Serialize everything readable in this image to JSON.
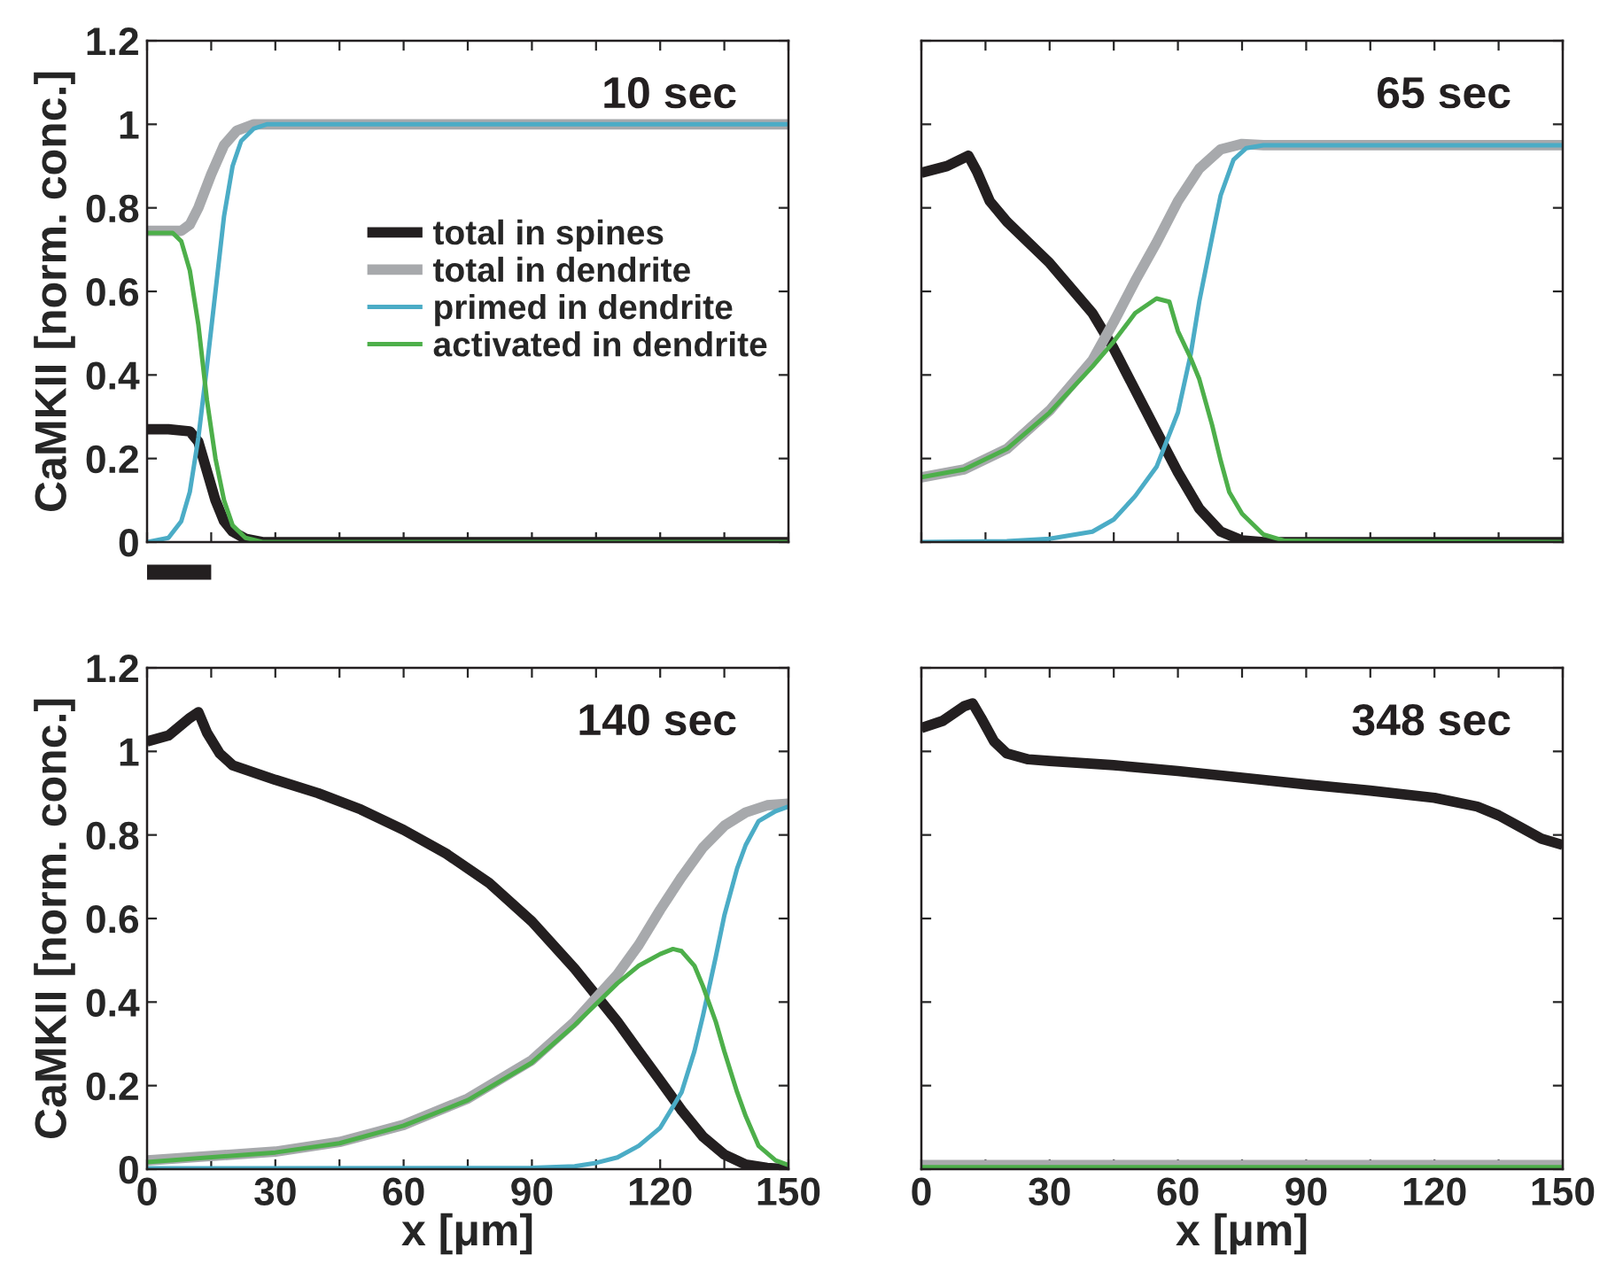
{
  "chart_data": [
    {
      "type": "line",
      "title": "10 sec",
      "ylabel": "CaMKII [norm. conc.]",
      "xlim": [
        0,
        150
      ],
      "ylim": [
        0,
        1.2
      ],
      "xticks": [
        0,
        {
          "value": 15,
          "label": null
        },
        30,
        {
          "value": 45,
          "label": null
        },
        60,
        {
          "value": 75,
          "label": null
        },
        90,
        {
          "value": 105,
          "label": null
        },
        120,
        {
          "value": 135,
          "label": null
        },
        150
      ],
      "yticks": [
        0,
        0.2,
        0.4,
        0.6,
        0.8,
        1,
        1.2
      ],
      "tick_labels": "y",
      "legend": "right",
      "grid": false,
      "series": [
        {
          "name": "total in spines",
          "color": "#231f20",
          "x": [
            0,
            5,
            10,
            12,
            14,
            16,
            18,
            20,
            23,
            27,
            150
          ],
          "values": [
            0.27,
            0.27,
            0.265,
            0.24,
            0.17,
            0.1,
            0.05,
            0.025,
            0.008,
            0,
            0
          ]
        },
        {
          "name": "total in dendrite",
          "color": "#a7a9ac",
          "x": [
            0,
            8,
            10,
            12,
            15,
            18,
            21,
            25,
            150
          ],
          "values": [
            0.745,
            0.745,
            0.76,
            0.8,
            0.88,
            0.95,
            0.985,
            1.0,
            1.0
          ]
        },
        {
          "name": "primed in dendrite",
          "color": "#4bacc6",
          "x": [
            0,
            5,
            8,
            10,
            12,
            14,
            16,
            18,
            20,
            22,
            25,
            28,
            150
          ],
          "values": [
            0,
            0.01,
            0.05,
            0.12,
            0.25,
            0.42,
            0.6,
            0.78,
            0.9,
            0.96,
            0.99,
            1.0,
            1.0
          ]
        },
        {
          "name": "activated in dendrite",
          "color": "#4daf4a",
          "x": [
            0,
            6,
            8,
            10,
            12,
            14,
            16,
            18,
            20,
            23,
            27,
            150
          ],
          "values": [
            0.74,
            0.74,
            0.72,
            0.65,
            0.52,
            0.34,
            0.2,
            0.1,
            0.04,
            0.01,
            0,
            0
          ]
        }
      ]
    },
    {
      "type": "line",
      "title": "65 sec",
      "xlim": [
        0,
        150
      ],
      "ylim": [
        0,
        1.2
      ],
      "xticks": [
        0,
        {
          "value": 15,
          "label": null
        },
        30,
        {
          "value": 45,
          "label": null
        },
        60,
        {
          "value": 75,
          "label": null
        },
        90,
        {
          "value": 105,
          "label": null
        },
        120,
        {
          "value": 135,
          "label": null
        },
        150
      ],
      "yticks": [
        0,
        0.2,
        0.4,
        0.6,
        0.8,
        1,
        1.2
      ],
      "tick_labels": false,
      "grid": false,
      "series": [
        {
          "color": "#231f20",
          "x": [
            0,
            6,
            11,
            13,
            16,
            20,
            30,
            40,
            45,
            50,
            55,
            60,
            65,
            70,
            75,
            80,
            150
          ],
          "values": [
            0.884,
            0.9,
            0.925,
            0.887,
            0.816,
            0.767,
            0.668,
            0.548,
            0.463,
            0.364,
            0.265,
            0.167,
            0.08,
            0.025,
            0.004,
            0,
            0
          ]
        },
        {
          "color": "#a7a9ac",
          "x": [
            0,
            10,
            20,
            30,
            40,
            45,
            50,
            55,
            60,
            65,
            70,
            75,
            80,
            150
          ],
          "values": [
            0.155,
            0.174,
            0.223,
            0.315,
            0.435,
            0.527,
            0.625,
            0.717,
            0.816,
            0.894,
            0.94,
            0.953,
            0.95,
            0.95
          ]
        },
        {
          "color": "#4bacc6",
          "x": [
            0,
            20,
            30,
            40,
            45,
            50,
            55,
            60,
            63,
            65,
            68,
            70,
            73,
            76,
            80,
            150
          ],
          "values": [
            0,
            0.002,
            0.008,
            0.025,
            0.054,
            0.11,
            0.18,
            0.31,
            0.45,
            0.576,
            0.73,
            0.83,
            0.915,
            0.943,
            0.95,
            0.95
          ]
        },
        {
          "color": "#4daf4a",
          "x": [
            0,
            10,
            20,
            30,
            40,
            45,
            50,
            55,
            58,
            60,
            63,
            65,
            68,
            70,
            72,
            75,
            80,
            85,
            150
          ],
          "values": [
            0.155,
            0.174,
            0.223,
            0.31,
            0.42,
            0.48,
            0.548,
            0.583,
            0.575,
            0.505,
            0.44,
            0.39,
            0.28,
            0.195,
            0.12,
            0.068,
            0.018,
            0.003,
            0
          ]
        }
      ]
    },
    {
      "type": "line",
      "title": "140 sec",
      "xlabel": "x [μm]",
      "ylabel": "CaMKII [norm. conc.]",
      "xlim": [
        0,
        150
      ],
      "ylim": [
        0,
        1.2
      ],
      "xticks": [
        0,
        {
          "value": 15,
          "label": null
        },
        30,
        {
          "value": 45,
          "label": null
        },
        60,
        {
          "value": 75,
          "label": null
        },
        90,
        {
          "value": 105,
          "label": null
        },
        120,
        {
          "value": 135,
          "label": null
        },
        150
      ],
      "yticks": [
        0,
        0.2,
        0.4,
        0.6,
        0.8,
        1,
        1.2
      ],
      "grid": false,
      "series": [
        {
          "color": "#231f20",
          "x": [
            0,
            5,
            10,
            12,
            14,
            17,
            20,
            30,
            40,
            50,
            60,
            70,
            80,
            90,
            100,
            110,
            115,
            120,
            125,
            130,
            135,
            140,
            145,
            150
          ],
          "values": [
            1.024,
            1.038,
            1.08,
            1.094,
            1.045,
            0.995,
            0.967,
            0.932,
            0.9,
            0.861,
            0.812,
            0.755,
            0.685,
            0.593,
            0.48,
            0.353,
            0.282,
            0.212,
            0.141,
            0.078,
            0.035,
            0.011,
            0.003,
            0
          ]
        },
        {
          "color": "#a7a9ac",
          "x": [
            0,
            30,
            45,
            60,
            75,
            90,
            100,
            110,
            115,
            120,
            125,
            130,
            135,
            140,
            145,
            150
          ],
          "values": [
            0.021,
            0.042,
            0.065,
            0.106,
            0.169,
            0.261,
            0.353,
            0.466,
            0.537,
            0.621,
            0.699,
            0.77,
            0.822,
            0.854,
            0.871,
            0.875
          ]
        },
        {
          "color": "#4bacc6",
          "x": [
            0,
            90,
            100,
            105,
            110,
            115,
            120,
            125,
            128,
            130,
            133,
            135,
            138,
            140,
            143,
            147,
            150
          ],
          "values": [
            0.002,
            0.003,
            0.007,
            0.015,
            0.028,
            0.056,
            0.099,
            0.184,
            0.282,
            0.367,
            0.508,
            0.607,
            0.72,
            0.776,
            0.833,
            0.857,
            0.868
          ]
        },
        {
          "color": "#4daf4a",
          "x": [
            0,
            30,
            45,
            60,
            75,
            90,
            100,
            110,
            115,
            120,
            123,
            125,
            128,
            130,
            133,
            135,
            138,
            140,
            143,
            147,
            150
          ],
          "values": [
            0.017,
            0.04,
            0.062,
            0.104,
            0.165,
            0.255,
            0.345,
            0.445,
            0.487,
            0.515,
            0.527,
            0.522,
            0.487,
            0.438,
            0.353,
            0.282,
            0.184,
            0.127,
            0.056,
            0.021,
            0.01
          ]
        }
      ]
    },
    {
      "type": "line",
      "title": "348 sec",
      "xlabel": "x [μm]",
      "xlim": [
        0,
        150
      ],
      "ylim": [
        0,
        1.2
      ],
      "xticks": [
        0,
        {
          "value": 15,
          "label": null
        },
        30,
        {
          "value": 45,
          "label": null
        },
        60,
        {
          "value": 75,
          "label": null
        },
        90,
        {
          "value": 105,
          "label": null
        },
        120,
        {
          "value": 135,
          "label": null
        },
        150
      ],
      "yticks": [
        0,
        0.2,
        0.4,
        0.6,
        0.8,
        1,
        1.2
      ],
      "tick_labels": "x",
      "grid": false,
      "series": [
        {
          "color": "#231f20",
          "x": [
            0,
            5,
            10,
            12,
            14,
            17,
            20,
            25,
            30,
            45,
            60,
            75,
            90,
            105,
            120,
            130,
            135,
            140,
            145,
            150
          ],
          "values": [
            1.056,
            1.073,
            1.108,
            1.115,
            1.08,
            1.024,
            0.995,
            0.981,
            0.977,
            0.967,
            0.953,
            0.937,
            0.921,
            0.906,
            0.889,
            0.868,
            0.847,
            0.819,
            0.791,
            0.776
          ]
        },
        {
          "color": "#a7a9ac",
          "x": [
            0,
            150
          ],
          "values": [
            0.01,
            0.01
          ]
        },
        {
          "color": "#4daf4a",
          "x": [
            0,
            150
          ],
          "values": [
            0.005,
            0.005
          ]
        }
      ]
    }
  ]
}
